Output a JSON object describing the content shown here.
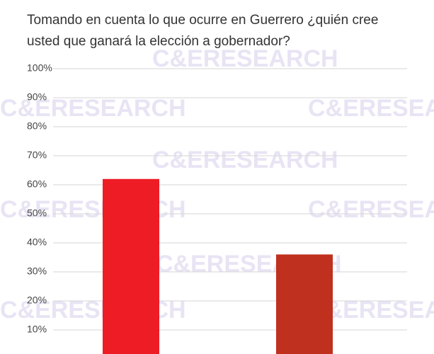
{
  "chart_data": {
    "type": "bar",
    "title": [
      "Tomando en cuenta lo que ocurre en Guerrero ¿quién cree",
      "usted que ganará la elección a gobernador?"
    ],
    "watermark": "C&ERESEARCH",
    "categories": [
      null,
      null
    ],
    "values": [
      62,
      36
    ],
    "colors": [
      "#ee1c25",
      "#c0301f"
    ],
    "ylim": [
      0,
      100
    ],
    "yticks": [
      {
        "value": 10,
        "label": "10%"
      },
      {
        "value": 20,
        "label": "20%"
      },
      {
        "value": 30,
        "label": "30%"
      },
      {
        "value": 40,
        "label": "40%"
      },
      {
        "value": 50,
        "label": "50%"
      },
      {
        "value": 60,
        "label": "60%"
      },
      {
        "value": 70,
        "label": "70%"
      },
      {
        "value": 80,
        "label": "80%"
      },
      {
        "value": 90,
        "label": "90%"
      },
      {
        "value": 100,
        "label": "100%"
      }
    ],
    "grid": true
  }
}
